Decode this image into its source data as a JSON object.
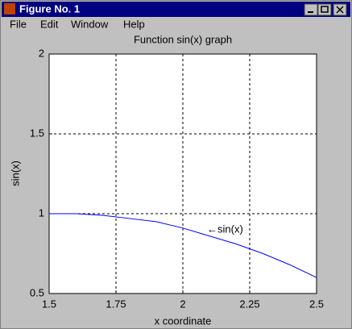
{
  "window": {
    "title": "Figure No. 1",
    "menu": [
      "File",
      "Edit",
      "Window",
      "Help"
    ]
  },
  "chart_data": {
    "type": "line",
    "title": "Function sin(x) graph",
    "x_label": "x coordinate",
    "y_label": "sin(x)",
    "x": [
      1.5,
      1.6,
      1.7,
      1.8,
      1.9,
      2.0,
      2.1,
      2.2,
      2.3,
      2.4,
      2.5
    ],
    "series": [
      {
        "name": "sin(x)",
        "color": "#0000ff",
        "values": [
          1.0,
          1.0,
          0.99,
          0.97,
          0.95,
          0.91,
          0.86,
          0.81,
          0.75,
          0.68,
          0.6
        ]
      }
    ],
    "annotation": "←sin(x)",
    "xlim": [
      1.5,
      2.5
    ],
    "xticks": [
      1.5,
      1.75,
      2,
      2.25,
      2.5
    ],
    "ylim": [
      0.5,
      2
    ],
    "yticks": [
      0.5,
      1,
      1.5,
      2
    ],
    "grid": true
  }
}
